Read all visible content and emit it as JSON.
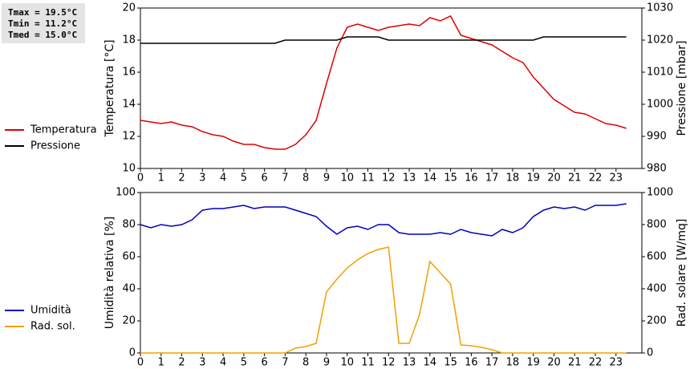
{
  "chart_data": [
    {
      "type": "line",
      "annotations": [
        "Tmax = 19.5°C",
        "Tmin = 11.2°C",
        "Tmed = 15.0°C"
      ],
      "ylabel": "Temperatura [°C]",
      "y2label": "Pressione [mbar]",
      "x": [
        0,
        0.5,
        1,
        1.5,
        2,
        2.5,
        3,
        3.5,
        4,
        4.5,
        5,
        5.5,
        6,
        6.5,
        7,
        7.5,
        8,
        8.5,
        9,
        9.5,
        10,
        10.5,
        11,
        11.5,
        12,
        12.5,
        13,
        13.5,
        14,
        14.5,
        15,
        15.5,
        16,
        16.5,
        17,
        17.5,
        18,
        18.5,
        19,
        19.5,
        20,
        20.5,
        21,
        21.5,
        22,
        22.5,
        23,
        23.5
      ],
      "xlim": [
        0,
        24.25
      ],
      "xticks": [
        0,
        1,
        2,
        3,
        4,
        5,
        6,
        7,
        8,
        9,
        10,
        11,
        12,
        13,
        14,
        15,
        16,
        17,
        18,
        19,
        20,
        21,
        22,
        23
      ],
      "ylim": [
        10,
        20
      ],
      "yticks": [
        10,
        12,
        14,
        16,
        18,
        20
      ],
      "y2lim": [
        980,
        1030
      ],
      "y2ticks": [
        980,
        990,
        1000,
        1010,
        1020,
        1030
      ],
      "legend": "left",
      "series": [
        {
          "name": "Temperatura",
          "color": "#dd0000",
          "values": [
            13.0,
            12.9,
            12.8,
            12.9,
            12.7,
            12.6,
            12.3,
            12.1,
            12.0,
            11.7,
            11.5,
            11.5,
            11.3,
            11.2,
            11.2,
            11.5,
            12.1,
            13.0,
            15.3,
            17.5,
            18.8,
            19.0,
            18.8,
            18.6,
            18.8,
            18.9,
            19.0,
            18.9,
            19.4,
            19.2,
            19.5,
            18.3,
            18.1,
            17.9,
            17.7,
            17.3,
            16.9,
            16.6,
            15.7,
            15.0,
            14.3,
            13.9,
            13.5,
            13.4,
            13.1,
            12.8,
            12.7,
            12.5
          ]
        },
        {
          "name": "Pressione",
          "color": "#000000",
          "axis": "y2",
          "values": [
            1019,
            1019,
            1019,
            1019,
            1019,
            1019,
            1019,
            1019,
            1019,
            1019,
            1019,
            1019,
            1019,
            1019,
            1020,
            1020,
            1020,
            1020,
            1020,
            1020,
            1021,
            1021,
            1021,
            1021,
            1020,
            1020,
            1020,
            1020,
            1020,
            1020,
            1020,
            1020,
            1020,
            1020,
            1020,
            1020,
            1020,
            1020,
            1020,
            1021,
            1021,
            1021,
            1021,
            1021,
            1021,
            1021,
            1021,
            1021
          ]
        }
      ]
    },
    {
      "type": "line",
      "ylabel": "Umidità relativa [%]",
      "y2label": "Rad. solare [W/mq]",
      "x": [
        0,
        0.5,
        1,
        1.5,
        2,
        2.5,
        3,
        3.5,
        4,
        4.5,
        5,
        5.5,
        6,
        6.5,
        7,
        7.5,
        8,
        8.5,
        9,
        9.5,
        10,
        10.5,
        11,
        11.5,
        12,
        12.5,
        13,
        13.5,
        14,
        14.5,
        15,
        15.5,
        16,
        16.5,
        17,
        17.5,
        18,
        18.5,
        19,
        19.5,
        20,
        20.5,
        21,
        21.5,
        22,
        22.5,
        23,
        23.5
      ],
      "xlim": [
        0,
        24.25
      ],
      "xticks": [
        0,
        1,
        2,
        3,
        4,
        5,
        6,
        7,
        8,
        9,
        10,
        11,
        12,
        13,
        14,
        15,
        16,
        17,
        18,
        19,
        20,
        21,
        22,
        23
      ],
      "ylim": [
        0,
        100
      ],
      "yticks": [
        0,
        20,
        40,
        60,
        80,
        100
      ],
      "y2lim": [
        0,
        1000
      ],
      "y2ticks": [
        0,
        200,
        400,
        600,
        800,
        1000
      ],
      "legend": "left",
      "series": [
        {
          "name": "Umidità",
          "color": "#0000bb",
          "values": [
            80,
            78,
            80,
            79,
            80,
            83,
            89,
            90,
            90,
            91,
            92,
            90,
            91,
            91,
            91,
            89,
            87,
            85,
            79,
            74,
            78,
            79,
            77,
            80,
            80,
            75,
            74,
            74,
            74,
            75,
            74,
            77,
            75,
            74,
            73,
            77,
            75,
            78,
            85,
            89,
            91,
            90,
            91,
            89,
            92,
            92,
            92,
            93
          ]
        },
        {
          "name": "Rad. sol.",
          "color": "#f0a000",
          "axis": "y2",
          "values": [
            0,
            0,
            0,
            0,
            0,
            0,
            0,
            0,
            0,
            0,
            0,
            0,
            0,
            0,
            0,
            30,
            40,
            60,
            380,
            460,
            530,
            580,
            620,
            645,
            660,
            60,
            60,
            240,
            570,
            500,
            430,
            50,
            45,
            35,
            20,
            0,
            0,
            0,
            0,
            0,
            0,
            0,
            0,
            0,
            0,
            0,
            0,
            0
          ]
        }
      ]
    }
  ]
}
